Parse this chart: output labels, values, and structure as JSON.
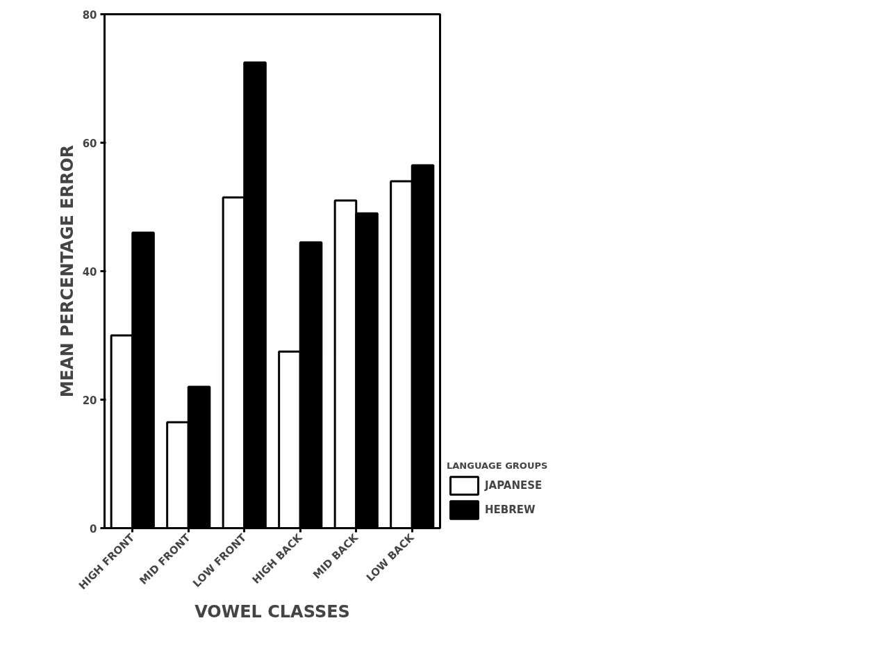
{
  "chart_data": {
    "type": "bar",
    "xlabel": "VOWEL CLASSES",
    "ylabel": "MEAN PERCENTAGE ERROR",
    "legend_title": "LANGUAGE GROUPS",
    "categories": [
      "HIGH FRONT",
      "MID FRONT",
      "LOW FRONT",
      "HIGH BACK",
      "MID BACK",
      "LOW BACK"
    ],
    "series": [
      {
        "name": "JAPANESE",
        "color": "#ffffff",
        "values": [
          30,
          16.5,
          51.5,
          27.5,
          51,
          54
        ]
      },
      {
        "name": "HEBREW",
        "color": "#000000",
        "values": [
          46,
          22,
          72.5,
          44.5,
          49,
          56.5
        ]
      }
    ],
    "ylim": [
      0,
      80
    ],
    "yticks": [
      0,
      20,
      40,
      60,
      80
    ],
    "grid": false,
    "legend": "bottom right"
  }
}
